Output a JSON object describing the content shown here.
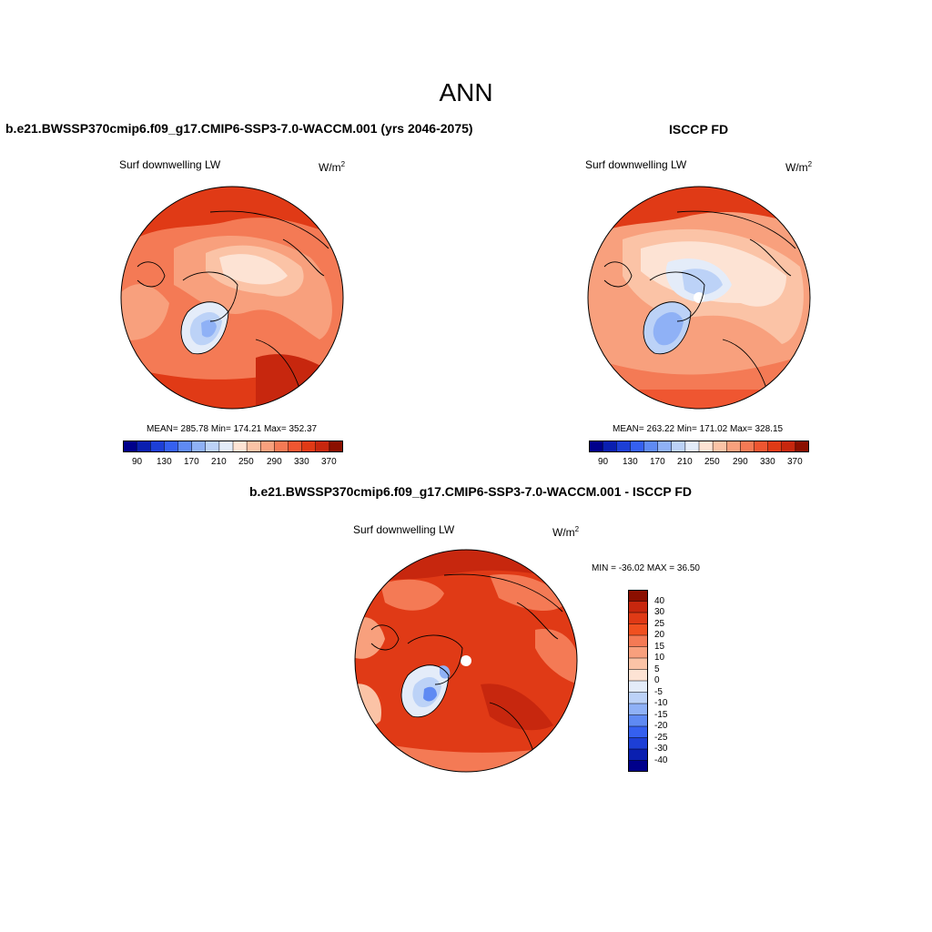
{
  "figure": {
    "title": "ANN",
    "panels": [
      {
        "id": "model",
        "case_title": "b.e21.BWSSP370cmip6.f09_g17.CMIP6-SSP3-7.0-WACCM.001 (yrs 2046-2075)",
        "variable": "Surf downwelling LW",
        "units": "W/m",
        "units_exp": "2",
        "stats": "MEAN= 285.78  Min= 174.21  Max= 352.37",
        "colorbar_ticks": [
          "90",
          "130",
          "170",
          "210",
          "250",
          "290",
          "330",
          "370"
        ]
      },
      {
        "id": "obs",
        "case_title": "ISCCP FD",
        "variable": "Surf downwelling LW",
        "units": "W/m",
        "units_exp": "2",
        "stats": "MEAN= 263.22  Min= 171.02  Max= 328.15",
        "colorbar_ticks": [
          "90",
          "130",
          "170",
          "210",
          "250",
          "290",
          "330",
          "370"
        ]
      },
      {
        "id": "diff",
        "case_title": "b.e21.BWSSP370cmip6.f09_g17.CMIP6-SSP3-7.0-WACCM.001 - ISCCP FD",
        "variable": "Surf downwelling LW",
        "units": "W/m",
        "units_exp": "2",
        "stats": "MIN = -36.02 MAX =  36.50",
        "colorbar_ticks": [
          "40",
          "30",
          "25",
          "20",
          "15",
          "10",
          "5",
          "0",
          "-5",
          "-10",
          "-15",
          "-20",
          "-25",
          "-30",
          "-40"
        ]
      }
    ]
  },
  "colors": {
    "abs_scale": [
      "#00008b",
      "#0a1fb0",
      "#1d3fd6",
      "#3560f0",
      "#5f8af3",
      "#8fb1f6",
      "#bcd2f7",
      "#e4ecf9",
      "#fde3d4",
      "#fbc3a6",
      "#f8a07d",
      "#f47a55",
      "#ef5631",
      "#e03a16",
      "#c7270e",
      "#8b0f00"
    ],
    "diff_scale": [
      "#8b0f00",
      "#c7270e",
      "#e03a16",
      "#f05020",
      "#f47a55",
      "#f8a07d",
      "#fbc3a6",
      "#fde3d4",
      "#e4ecf9",
      "#bcd2f7",
      "#8fb1f6",
      "#5f8af3",
      "#3560f0",
      "#1d3fd6",
      "#0a1fb0",
      "#00008b"
    ]
  }
}
